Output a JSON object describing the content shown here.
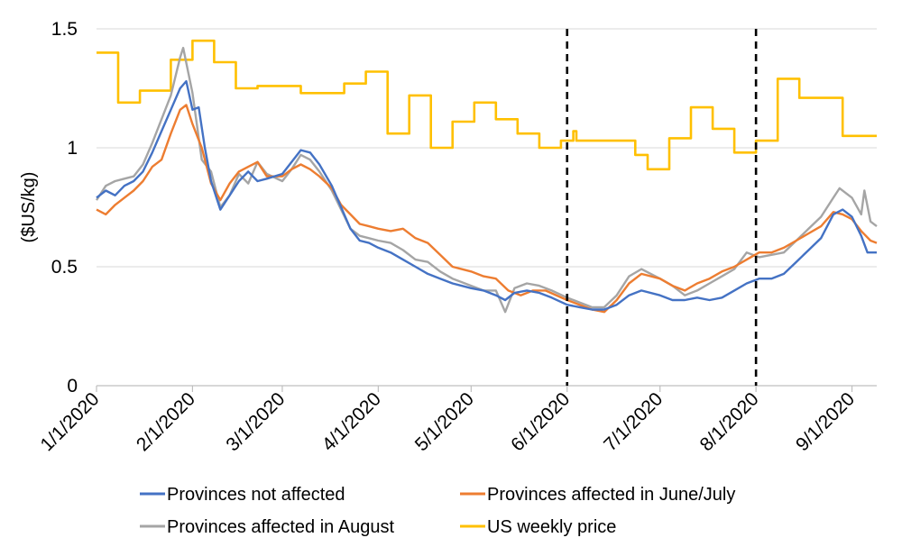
{
  "chart_data": {
    "type": "line",
    "title": "",
    "xlabel": "",
    "ylabel": "($US/kg)",
    "ylim": [
      0,
      1.5
    ],
    "xlim": [
      "2020-01-01",
      "2020-09-09"
    ],
    "y_ticks": [
      "0",
      "0.5",
      "1",
      "1.5"
    ],
    "x_ticks": [
      "1/1/2020",
      "2/1/2020",
      "3/1/2020",
      "4/1/2020",
      "5/1/2020",
      "6/1/2020",
      "7/1/2020",
      "8/1/2020",
      "9/1/2020"
    ],
    "grid": "horizontal",
    "legend_position": "bottom",
    "vertical_markers": [
      "2020-06-01",
      "2020-08-01"
    ],
    "series": [
      {
        "name": "Provinces not affected",
        "color": "#4472C4",
        "points": [
          [
            "2020-01-01",
            0.79
          ],
          [
            "2020-01-04",
            0.82
          ],
          [
            "2020-01-07",
            0.8
          ],
          [
            "2020-01-10",
            0.84
          ],
          [
            "2020-01-13",
            0.86
          ],
          [
            "2020-01-16",
            0.9
          ],
          [
            "2020-01-19",
            0.98
          ],
          [
            "2020-01-22",
            1.07
          ],
          [
            "2020-01-25",
            1.16
          ],
          [
            "2020-01-28",
            1.25
          ],
          [
            "2020-01-30",
            1.28
          ],
          [
            "2020-02-01",
            1.16
          ],
          [
            "2020-02-03",
            1.17
          ],
          [
            "2020-02-05",
            1.0
          ],
          [
            "2020-02-07",
            0.86
          ],
          [
            "2020-02-10",
            0.74
          ],
          [
            "2020-02-13",
            0.8
          ],
          [
            "2020-02-16",
            0.86
          ],
          [
            "2020-02-19",
            0.9
          ],
          [
            "2020-02-22",
            0.86
          ],
          [
            "2020-02-25",
            0.87
          ],
          [
            "2020-03-01",
            0.89
          ],
          [
            "2020-03-04",
            0.94
          ],
          [
            "2020-03-07",
            0.99
          ],
          [
            "2020-03-10",
            0.98
          ],
          [
            "2020-03-13",
            0.93
          ],
          [
            "2020-03-17",
            0.84
          ],
          [
            "2020-03-20",
            0.75
          ],
          [
            "2020-03-23",
            0.66
          ],
          [
            "2020-03-26",
            0.61
          ],
          [
            "2020-03-29",
            0.6
          ],
          [
            "2020-04-01",
            0.58
          ],
          [
            "2020-04-05",
            0.56
          ],
          [
            "2020-04-09",
            0.53
          ],
          [
            "2020-04-13",
            0.5
          ],
          [
            "2020-04-17",
            0.47
          ],
          [
            "2020-04-21",
            0.45
          ],
          [
            "2020-04-25",
            0.43
          ],
          [
            "2020-05-01",
            0.41
          ],
          [
            "2020-05-05",
            0.4
          ],
          [
            "2020-05-09",
            0.38
          ],
          [
            "2020-05-12",
            0.36
          ],
          [
            "2020-05-15",
            0.39
          ],
          [
            "2020-05-19",
            0.4
          ],
          [
            "2020-05-23",
            0.39
          ],
          [
            "2020-05-27",
            0.37
          ],
          [
            "2020-06-01",
            0.34
          ],
          [
            "2020-06-05",
            0.33
          ],
          [
            "2020-06-09",
            0.32
          ],
          [
            "2020-06-13",
            0.32
          ],
          [
            "2020-06-17",
            0.34
          ],
          [
            "2020-06-21",
            0.38
          ],
          [
            "2020-06-25",
            0.4
          ],
          [
            "2020-07-01",
            0.38
          ],
          [
            "2020-07-05",
            0.36
          ],
          [
            "2020-07-09",
            0.36
          ],
          [
            "2020-07-13",
            0.37
          ],
          [
            "2020-07-17",
            0.36
          ],
          [
            "2020-07-21",
            0.37
          ],
          [
            "2020-07-25",
            0.4
          ],
          [
            "2020-07-29",
            0.43
          ],
          [
            "2020-08-02",
            0.45
          ],
          [
            "2020-08-06",
            0.45
          ],
          [
            "2020-08-10",
            0.47
          ],
          [
            "2020-08-14",
            0.52
          ],
          [
            "2020-08-18",
            0.57
          ],
          [
            "2020-08-22",
            0.62
          ],
          [
            "2020-08-26",
            0.72
          ],
          [
            "2020-08-29",
            0.74
          ],
          [
            "2020-09-01",
            0.71
          ],
          [
            "2020-09-04",
            0.63
          ],
          [
            "2020-09-06",
            0.56
          ],
          [
            "2020-09-09",
            0.56
          ]
        ]
      },
      {
        "name": "Provinces affected in June/July",
        "color": "#ED7D31",
        "points": [
          [
            "2020-01-01",
            0.74
          ],
          [
            "2020-01-04",
            0.72
          ],
          [
            "2020-01-07",
            0.76
          ],
          [
            "2020-01-10",
            0.79
          ],
          [
            "2020-01-13",
            0.82
          ],
          [
            "2020-01-16",
            0.86
          ],
          [
            "2020-01-19",
            0.92
          ],
          [
            "2020-01-22",
            0.95
          ],
          [
            "2020-01-25",
            1.06
          ],
          [
            "2020-01-28",
            1.16
          ],
          [
            "2020-01-30",
            1.18
          ],
          [
            "2020-02-01",
            1.1
          ],
          [
            "2020-02-04",
            1.0
          ],
          [
            "2020-02-07",
            0.85
          ],
          [
            "2020-02-10",
            0.78
          ],
          [
            "2020-02-13",
            0.85
          ],
          [
            "2020-02-16",
            0.9
          ],
          [
            "2020-02-19",
            0.92
          ],
          [
            "2020-02-22",
            0.94
          ],
          [
            "2020-02-25",
            0.88
          ],
          [
            "2020-03-01",
            0.88
          ],
          [
            "2020-03-04",
            0.91
          ],
          [
            "2020-03-07",
            0.93
          ],
          [
            "2020-03-10",
            0.91
          ],
          [
            "2020-03-13",
            0.88
          ],
          [
            "2020-03-17",
            0.83
          ],
          [
            "2020-03-20",
            0.76
          ],
          [
            "2020-03-23",
            0.72
          ],
          [
            "2020-03-26",
            0.68
          ],
          [
            "2020-03-29",
            0.67
          ],
          [
            "2020-04-01",
            0.66
          ],
          [
            "2020-04-05",
            0.65
          ],
          [
            "2020-04-09",
            0.66
          ],
          [
            "2020-04-13",
            0.62
          ],
          [
            "2020-04-17",
            0.6
          ],
          [
            "2020-04-21",
            0.55
          ],
          [
            "2020-04-25",
            0.5
          ],
          [
            "2020-05-01",
            0.48
          ],
          [
            "2020-05-05",
            0.46
          ],
          [
            "2020-05-09",
            0.45
          ],
          [
            "2020-05-13",
            0.4
          ],
          [
            "2020-05-17",
            0.38
          ],
          [
            "2020-05-21",
            0.4
          ],
          [
            "2020-05-25",
            0.4
          ],
          [
            "2020-06-01",
            0.36
          ],
          [
            "2020-06-05",
            0.34
          ],
          [
            "2020-06-09",
            0.32
          ],
          [
            "2020-06-13",
            0.31
          ],
          [
            "2020-06-17",
            0.36
          ],
          [
            "2020-06-21",
            0.43
          ],
          [
            "2020-06-25",
            0.47
          ],
          [
            "2020-07-01",
            0.45
          ],
          [
            "2020-07-05",
            0.42
          ],
          [
            "2020-07-09",
            0.4
          ],
          [
            "2020-07-13",
            0.43
          ],
          [
            "2020-07-17",
            0.45
          ],
          [
            "2020-07-21",
            0.48
          ],
          [
            "2020-07-25",
            0.5
          ],
          [
            "2020-07-29",
            0.53
          ],
          [
            "2020-08-02",
            0.56
          ],
          [
            "2020-08-06",
            0.56
          ],
          [
            "2020-08-10",
            0.58
          ],
          [
            "2020-08-14",
            0.61
          ],
          [
            "2020-08-18",
            0.64
          ],
          [
            "2020-08-22",
            0.67
          ],
          [
            "2020-08-26",
            0.73
          ],
          [
            "2020-08-29",
            0.72
          ],
          [
            "2020-09-01",
            0.7
          ],
          [
            "2020-09-04",
            0.65
          ],
          [
            "2020-09-07",
            0.61
          ],
          [
            "2020-09-09",
            0.6
          ]
        ]
      },
      {
        "name": "Provinces affected in August",
        "color": "#A5A5A5",
        "points": [
          [
            "2020-01-01",
            0.78
          ],
          [
            "2020-01-04",
            0.84
          ],
          [
            "2020-01-07",
            0.86
          ],
          [
            "2020-01-10",
            0.87
          ],
          [
            "2020-01-13",
            0.88
          ],
          [
            "2020-01-16",
            0.93
          ],
          [
            "2020-01-19",
            1.02
          ],
          [
            "2020-01-22",
            1.12
          ],
          [
            "2020-01-25",
            1.22
          ],
          [
            "2020-01-28",
            1.38
          ],
          [
            "2020-01-29",
            1.42
          ],
          [
            "2020-02-01",
            1.23
          ],
          [
            "2020-02-04",
            0.95
          ],
          [
            "2020-02-07",
            0.9
          ],
          [
            "2020-02-10",
            0.75
          ],
          [
            "2020-02-13",
            0.8
          ],
          [
            "2020-02-16",
            0.89
          ],
          [
            "2020-02-19",
            0.85
          ],
          [
            "2020-02-22",
            0.94
          ],
          [
            "2020-02-25",
            0.89
          ],
          [
            "2020-03-01",
            0.86
          ],
          [
            "2020-03-04",
            0.91
          ],
          [
            "2020-03-07",
            0.97
          ],
          [
            "2020-03-10",
            0.95
          ],
          [
            "2020-03-13",
            0.9
          ],
          [
            "2020-03-17",
            0.82
          ],
          [
            "2020-03-20",
            0.74
          ],
          [
            "2020-03-23",
            0.66
          ],
          [
            "2020-03-26",
            0.63
          ],
          [
            "2020-03-29",
            0.62
          ],
          [
            "2020-04-01",
            0.61
          ],
          [
            "2020-04-05",
            0.6
          ],
          [
            "2020-04-09",
            0.57
          ],
          [
            "2020-04-13",
            0.53
          ],
          [
            "2020-04-17",
            0.52
          ],
          [
            "2020-04-21",
            0.48
          ],
          [
            "2020-04-25",
            0.45
          ],
          [
            "2020-05-01",
            0.42
          ],
          [
            "2020-05-05",
            0.4
          ],
          [
            "2020-05-09",
            0.4
          ],
          [
            "2020-05-12",
            0.31
          ],
          [
            "2020-05-15",
            0.41
          ],
          [
            "2020-05-19",
            0.43
          ],
          [
            "2020-05-23",
            0.42
          ],
          [
            "2020-05-27",
            0.4
          ],
          [
            "2020-06-01",
            0.37
          ],
          [
            "2020-06-05",
            0.35
          ],
          [
            "2020-06-09",
            0.33
          ],
          [
            "2020-06-13",
            0.33
          ],
          [
            "2020-06-17",
            0.38
          ],
          [
            "2020-06-21",
            0.46
          ],
          [
            "2020-06-25",
            0.49
          ],
          [
            "2020-07-01",
            0.45
          ],
          [
            "2020-07-05",
            0.42
          ],
          [
            "2020-07-09",
            0.38
          ],
          [
            "2020-07-13",
            0.4
          ],
          [
            "2020-07-17",
            0.43
          ],
          [
            "2020-07-21",
            0.46
          ],
          [
            "2020-07-25",
            0.49
          ],
          [
            "2020-07-29",
            0.56
          ],
          [
            "2020-08-02",
            0.54
          ],
          [
            "2020-08-06",
            0.55
          ],
          [
            "2020-08-10",
            0.56
          ],
          [
            "2020-08-14",
            0.61
          ],
          [
            "2020-08-18",
            0.66
          ],
          [
            "2020-08-22",
            0.71
          ],
          [
            "2020-08-26",
            0.79
          ],
          [
            "2020-08-28",
            0.83
          ],
          [
            "2020-09-01",
            0.79
          ],
          [
            "2020-09-04",
            0.72
          ],
          [
            "2020-09-05",
            0.82
          ],
          [
            "2020-09-07",
            0.69
          ],
          [
            "2020-09-09",
            0.67
          ]
        ]
      },
      {
        "name": "US weekly price",
        "color": "#FFC000",
        "step": true,
        "points": [
          [
            "2020-01-01",
            1.4
          ],
          [
            "2020-01-08",
            1.19
          ],
          [
            "2020-01-15",
            1.24
          ],
          [
            "2020-01-22",
            1.24
          ],
          [
            "2020-01-25",
            1.37
          ],
          [
            "2020-01-29",
            1.37
          ],
          [
            "2020-02-01",
            1.45
          ],
          [
            "2020-02-08",
            1.36
          ],
          [
            "2020-02-15",
            1.25
          ],
          [
            "2020-02-22",
            1.26
          ],
          [
            "2020-02-29",
            1.26
          ],
          [
            "2020-03-07",
            1.23
          ],
          [
            "2020-03-14",
            1.23
          ],
          [
            "2020-03-21",
            1.27
          ],
          [
            "2020-03-28",
            1.32
          ],
          [
            "2020-04-04",
            1.06
          ],
          [
            "2020-04-11",
            1.22
          ],
          [
            "2020-04-18",
            1.0
          ],
          [
            "2020-04-25",
            1.11
          ],
          [
            "2020-05-02",
            1.19
          ],
          [
            "2020-05-09",
            1.12
          ],
          [
            "2020-05-16",
            1.06
          ],
          [
            "2020-05-23",
            1.0
          ],
          [
            "2020-05-30",
            1.03
          ],
          [
            "2020-06-03",
            1.07
          ],
          [
            "2020-06-04",
            1.03
          ],
          [
            "2020-06-13",
            1.03
          ],
          [
            "2020-06-20",
            1.03
          ],
          [
            "2020-06-23",
            0.97
          ],
          [
            "2020-06-27",
            0.91
          ],
          [
            "2020-07-04",
            1.04
          ],
          [
            "2020-07-11",
            1.17
          ],
          [
            "2020-07-18",
            1.08
          ],
          [
            "2020-07-25",
            0.98
          ],
          [
            "2020-08-01",
            1.03
          ],
          [
            "2020-08-08",
            1.29
          ],
          [
            "2020-08-15",
            1.21
          ],
          [
            "2020-08-22",
            1.21
          ],
          [
            "2020-08-29",
            1.05
          ],
          [
            "2020-09-09",
            1.05
          ]
        ]
      }
    ]
  }
}
